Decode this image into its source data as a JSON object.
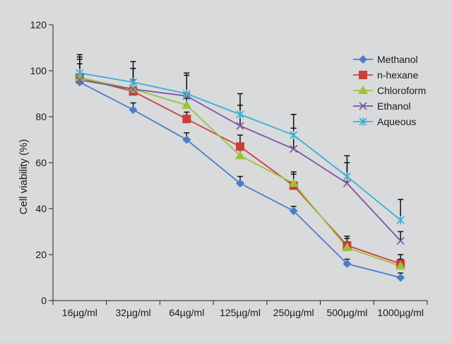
{
  "chart_data": {
    "type": "line",
    "title": "",
    "xlabel": "",
    "ylabel": "Cell viability (%)",
    "categories": [
      "16µg/ml",
      "32µg/ml",
      "64µg/ml",
      "125µg/ml",
      "250µg/ml",
      "500µg/ml",
      "1000µg/ml"
    ],
    "ylim": [
      0,
      120
    ],
    "yticks": [
      0,
      20,
      40,
      60,
      80,
      100,
      120
    ],
    "grid": false,
    "legend_position": "top-right",
    "series": [
      {
        "name": "Methanol",
        "color": "#4a7ec8",
        "marker": "diamond",
        "values": [
          95,
          83,
          70,
          51,
          39,
          16,
          10
        ]
      },
      {
        "name": "n-hexane",
        "color": "#c9403a",
        "marker": "square",
        "values": [
          97,
          91,
          79,
          67,
          50,
          24,
          16
        ]
      },
      {
        "name": "Chloroform",
        "color": "#9cc23c",
        "marker": "triangle",
        "values": [
          97,
          92,
          85,
          63,
          51,
          23,
          15
        ]
      },
      {
        "name": "Ethanol",
        "color": "#7a55a3",
        "marker": "x",
        "values": [
          96,
          92,
          89,
          76,
          66,
          51,
          26
        ]
      },
      {
        "name": "Aqueous",
        "color": "#3bb0d4",
        "marker": "asterisk",
        "values": [
          99,
          95,
          90,
          81,
          72,
          54,
          35
        ]
      }
    ],
    "error_bar_tops": [
      [
        97,
        86,
        73,
        54,
        41,
        18,
        12
      ],
      [
        105,
        96,
        82,
        72,
        56,
        28,
        20
      ],
      [
        103,
        101,
        88,
        66,
        55,
        27,
        18
      ],
      [
        107,
        101,
        98,
        85,
        75,
        60,
        30
      ],
      [
        106,
        104,
        99,
        90,
        81,
        63,
        44
      ]
    ]
  }
}
